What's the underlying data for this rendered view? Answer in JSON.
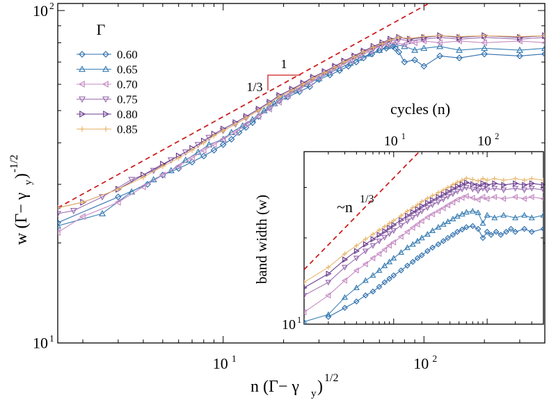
{
  "chart_data": [
    {
      "type": "line",
      "role": "main",
      "xlabel": "n (Γ− γy)1/2",
      "ylabel": "w (Γ− γy)-1/2",
      "xscale": "log",
      "yscale": "log",
      "xlim": [
        1.5,
        400
      ],
      "ylim": [
        10,
        105
      ],
      "x_ticks": [
        {
          "value": 10,
          "base": "10",
          "exp": "1"
        },
        {
          "value": 100,
          "base": "10",
          "exp": "2"
        }
      ],
      "y_ticks": [
        {
          "value": 10,
          "base": "10",
          "exp": "1"
        },
        {
          "value": 100,
          "base": "10",
          "exp": "2"
        }
      ],
      "legend": {
        "title": "Γ",
        "placement": "top-left",
        "entries": [
          "0.60",
          "0.65",
          "0.70",
          "0.75",
          "0.80",
          "0.85"
        ]
      },
      "reference_line": {
        "slope_label": "1/3",
        "run_label": "1",
        "style": "dashed",
        "color": "#cc1f1f",
        "points": [
          [
            1.5,
            25.5
          ],
          [
            150,
            118
          ]
        ]
      },
      "series": [
        {
          "name": "0.60",
          "marker": "diamond",
          "color": "#2f6fae",
          "x": [
            1.5,
            3,
            4.2,
            5,
            6,
            7,
            8,
            9,
            10,
            11,
            12,
            13,
            14,
            15,
            17,
            19,
            21,
            24,
            27,
            30,
            34,
            38,
            42,
            46,
            50,
            55,
            60,
            65,
            70,
            72,
            75,
            80,
            90,
            100,
            120,
            150,
            200,
            300,
            400
          ],
          "y": [
            23,
            27.5,
            30,
            32,
            33.5,
            35,
            36.5,
            38,
            39.5,
            41,
            43,
            44.5,
            46,
            48,
            51,
            53.5,
            55,
            57,
            59,
            62,
            64,
            66,
            68,
            70,
            72,
            74,
            76,
            77,
            78,
            77,
            75,
            70,
            71,
            68,
            73,
            72,
            74,
            73,
            74
          ]
        },
        {
          "name": "0.65",
          "marker": "triangle-up",
          "color": "#3a7fb3",
          "x": [
            1.5,
            2.5,
            3.5,
            4.5,
            5.5,
            6.5,
            7.5,
            8.5,
            10,
            11,
            12.5,
            14,
            16,
            18,
            20,
            23,
            26,
            30,
            34,
            38,
            43,
            48,
            54,
            60,
            66,
            72,
            80,
            90,
            100,
            120,
            150,
            200,
            300,
            400
          ],
          "y": [
            22.5,
            24.5,
            28.5,
            31,
            33,
            35.5,
            37.5,
            39.5,
            41,
            43,
            45,
            47,
            50,
            52.5,
            55,
            57.5,
            60,
            62.5,
            65,
            67,
            69.5,
            72,
            74,
            76,
            78,
            79,
            78,
            76,
            77,
            78,
            76,
            77,
            76,
            77
          ]
        },
        {
          "name": "0.70",
          "marker": "triangle-left",
          "color": "#c58cc3",
          "x": [
            1.5,
            2,
            3,
            4,
            5,
            6,
            7,
            8,
            9,
            10,
            11.5,
            13,
            15,
            17,
            19,
            21,
            24,
            27,
            30,
            34,
            38,
            43,
            48,
            54,
            60,
            66,
            72,
            80,
            90,
            100,
            120,
            150,
            200,
            300,
            400
          ],
          "y": [
            21.5,
            24,
            26.5,
            29.5,
            32,
            34,
            36,
            38,
            39.5,
            41,
            43,
            45.5,
            48,
            50.5,
            53,
            55.5,
            58,
            60.5,
            63,
            65.5,
            68,
            70.5,
            73,
            75.5,
            78,
            79,
            80,
            79,
            80,
            81,
            80,
            81,
            80,
            81,
            80
          ]
        },
        {
          "name": "0.75",
          "marker": "triangle-down",
          "color": "#9a6fb0",
          "x": [
            1.5,
            1.8,
            2.5,
            3.5,
            4.5,
            5.5,
            6.5,
            7.5,
            8.5,
            10,
            11.5,
            13,
            15,
            17,
            19,
            22,
            25,
            28,
            32,
            36,
            40,
            45,
            50,
            56,
            62,
            68,
            75,
            85,
            100,
            120,
            150,
            200,
            300,
            400
          ],
          "y": [
            24.5,
            25,
            27.5,
            31,
            33,
            35.5,
            37.5,
            39.5,
            41.5,
            43.5,
            45.5,
            47.5,
            50,
            52.5,
            55,
            57.5,
            60,
            62.5,
            65,
            67.5,
            70,
            72.5,
            75,
            77,
            79,
            81,
            82,
            81,
            82,
            83,
            82,
            83,
            82,
            83
          ]
        },
        {
          "name": "0.80",
          "marker": "triangle-right",
          "color": "#6a3d8e",
          "x": [
            1.5,
            2,
            3,
            4,
            5,
            6,
            7,
            8,
            9,
            10,
            11.5,
            13,
            15,
            17,
            19,
            22,
            25,
            28,
            32,
            36,
            40,
            45,
            50,
            56,
            62,
            68,
            75,
            85,
            100,
            120,
            150,
            200,
            300,
            400
          ],
          "y": [
            25.5,
            26.5,
            29,
            32,
            34.5,
            36.5,
            38.5,
            40.5,
            42.5,
            44,
            46,
            48,
            50.5,
            53,
            55.5,
            58,
            60.5,
            63,
            65.5,
            68,
            70.5,
            73,
            75.5,
            78,
            80,
            82,
            83,
            82,
            83,
            84,
            83,
            84,
            83,
            84
          ]
        },
        {
          "name": "0.85",
          "marker": "plus",
          "color": "#e8b66b",
          "x": [
            1.5,
            2,
            3,
            4,
            5,
            6,
            7,
            8,
            9,
            10,
            11.5,
            13,
            15,
            17,
            19,
            22,
            25,
            28,
            32,
            36,
            40,
            45,
            50,
            56,
            62,
            68,
            75,
            85,
            100,
            120,
            150,
            200,
            300,
            400
          ],
          "y": [
            25.5,
            26.5,
            29,
            31.5,
            34,
            36,
            38,
            40,
            42,
            43.5,
            45.5,
            47.5,
            50,
            52.5,
            55,
            57.5,
            60,
            62.5,
            65,
            67.5,
            70,
            72.5,
            75,
            77.5,
            79.5,
            81.5,
            83,
            82.5,
            83.5,
            84,
            83.5,
            84,
            83.5,
            84
          ]
        }
      ]
    },
    {
      "type": "line",
      "role": "inset",
      "xlabel": "cycles (n)",
      "ylabel": "band width (w)",
      "xscale": "log",
      "yscale": "log",
      "xlim": [
        1.1,
        400
      ],
      "ylim": [
        10,
        40
      ],
      "x_ticks": [
        {
          "value": 10,
          "base": "10",
          "exp": "1"
        },
        {
          "value": 100,
          "base": "10",
          "exp": "2"
        }
      ],
      "y_ticks": [
        {
          "value": 10,
          "base": "10",
          "exp": "1"
        }
      ],
      "reference_line": {
        "label": "~n",
        "label_exp": "1/3",
        "style": "dashed",
        "color": "#cc1f1f",
        "points": [
          [
            1.1,
            15.5
          ],
          [
            150,
            80
          ]
        ]
      },
      "series": [
        {
          "name": "0.60",
          "marker": "diamond",
          "color": "#2f6fae",
          "x": [
            2,
            3,
            4,
            5,
            6,
            7,
            8,
            9,
            10,
            12,
            14,
            16,
            18,
            20,
            23,
            26,
            30,
            34,
            38,
            43,
            48,
            54,
            60,
            70,
            80,
            90,
            100,
            110,
            125,
            140,
            160,
            180,
            200,
            250,
            300,
            400
          ],
          "y": [
            10.6,
            11.4,
            12,
            12.6,
            13,
            13.5,
            14,
            14.4,
            14.8,
            15.4,
            16,
            16.5,
            17,
            17.4,
            18,
            18.5,
            19,
            19.5,
            20,
            20.5,
            21,
            21.4,
            21.8,
            22,
            21.5,
            20,
            21,
            20.5,
            21,
            20.5,
            21,
            21.5,
            21,
            21.5,
            21,
            21.5
          ]
        },
        {
          "name": "0.65",
          "marker": "triangle-up",
          "color": "#3a7fb3",
          "x": [
            1.1,
            2,
            3,
            4,
            5,
            6,
            7,
            8,
            9,
            10,
            12,
            14,
            16,
            18,
            20,
            23,
            26,
            30,
            34,
            38,
            43,
            48,
            54,
            60,
            70,
            80,
            90,
            100,
            120,
            150,
            200,
            250,
            300,
            400
          ],
          "y": [
            10.2,
            10.8,
            12.4,
            13.4,
            14.2,
            14.8,
            15.4,
            16,
            16.5,
            17,
            17.8,
            18.5,
            19,
            19.5,
            20,
            20.6,
            21.2,
            21.8,
            22.3,
            22.8,
            23.3,
            23.8,
            24.2,
            24.6,
            24.8,
            24.5,
            22.5,
            24,
            23.5,
            24,
            23.5,
            24,
            23.5,
            24
          ]
        },
        {
          "name": "0.70",
          "marker": "triangle-left",
          "color": "#c58cc3",
          "x": [
            1.1,
            2,
            3,
            4,
            5,
            6,
            7,
            8,
            9,
            10,
            12,
            14,
            16,
            18,
            20,
            23,
            26,
            30,
            34,
            38,
            43,
            48,
            54,
            60,
            70,
            80,
            90,
            100,
            120,
            150,
            200,
            250,
            300,
            400
          ],
          "y": [
            11,
            12.6,
            14.2,
            15.4,
            16.2,
            17,
            17.6,
            18.2,
            18.8,
            19.3,
            20.2,
            21,
            21.7,
            22.3,
            22.9,
            23.6,
            24.2,
            24.8,
            25.4,
            26,
            26.6,
            27.2,
            27.6,
            28,
            27.6,
            27.2,
            27.8,
            27.4,
            27.8,
            27.4,
            27.8,
            27.4,
            27.8,
            27.4
          ]
        },
        {
          "name": "0.75",
          "marker": "triangle-down",
          "color": "#9a6fb0",
          "x": [
            1.1,
            2,
            3,
            4,
            5,
            6,
            7,
            8,
            9,
            10,
            12,
            14,
            16,
            18,
            20,
            23,
            26,
            30,
            34,
            38,
            43,
            48,
            54,
            60,
            70,
            80,
            90,
            100,
            120,
            150,
            200,
            250,
            300,
            400
          ],
          "y": [
            12.6,
            14,
            15.8,
            17,
            18,
            18.8,
            19.5,
            20.1,
            20.7,
            21.2,
            22.1,
            22.9,
            23.6,
            24.2,
            24.8,
            25.5,
            26.1,
            26.7,
            27.3,
            27.9,
            28.5,
            29.1,
            29.6,
            30,
            29.6,
            29.2,
            29.8,
            29.4,
            29.8,
            29.4,
            29.8,
            29.4,
            29.8,
            29.4
          ]
        },
        {
          "name": "0.80",
          "marker": "triangle-right",
          "color": "#6a3d8e",
          "x": [
            1.1,
            2,
            3,
            4,
            5,
            6,
            7,
            8,
            9,
            10,
            12,
            14,
            16,
            18,
            20,
            23,
            26,
            30,
            34,
            38,
            43,
            48,
            54,
            60,
            70,
            80,
            90,
            100,
            120,
            150,
            200,
            250,
            300,
            400
          ],
          "y": [
            13.4,
            15,
            16.8,
            18,
            19,
            19.8,
            20.5,
            21.1,
            21.7,
            22.2,
            23.1,
            23.9,
            24.6,
            25.2,
            25.8,
            26.5,
            27.1,
            27.8,
            28.4,
            29,
            29.7,
            30.3,
            30.8,
            31.2,
            30.8,
            30.4,
            31,
            30.6,
            31,
            30.6,
            31,
            30.6,
            31,
            30.6
          ]
        },
        {
          "name": "0.85",
          "marker": "plus",
          "color": "#e8b66b",
          "x": [
            1.1,
            2,
            3,
            4,
            5,
            6,
            7,
            8,
            9,
            10,
            12,
            14,
            16,
            18,
            20,
            23,
            26,
            30,
            34,
            38,
            43,
            48,
            54,
            60,
            70,
            80,
            90,
            100,
            120,
            150,
            200,
            250,
            300,
            400
          ],
          "y": [
            14,
            15.8,
            17.6,
            18.8,
            19.8,
            20.6,
            21.3,
            21.9,
            22.5,
            23,
            23.9,
            24.8,
            25.5,
            26.1,
            26.8,
            27.5,
            28.1,
            28.8,
            29.4,
            30,
            30.7,
            31.3,
            31.8,
            32.3,
            32,
            31.6,
            32.2,
            31.8,
            32.2,
            31.8,
            32.2,
            31.8,
            32.2,
            31.8
          ]
        }
      ]
    }
  ]
}
